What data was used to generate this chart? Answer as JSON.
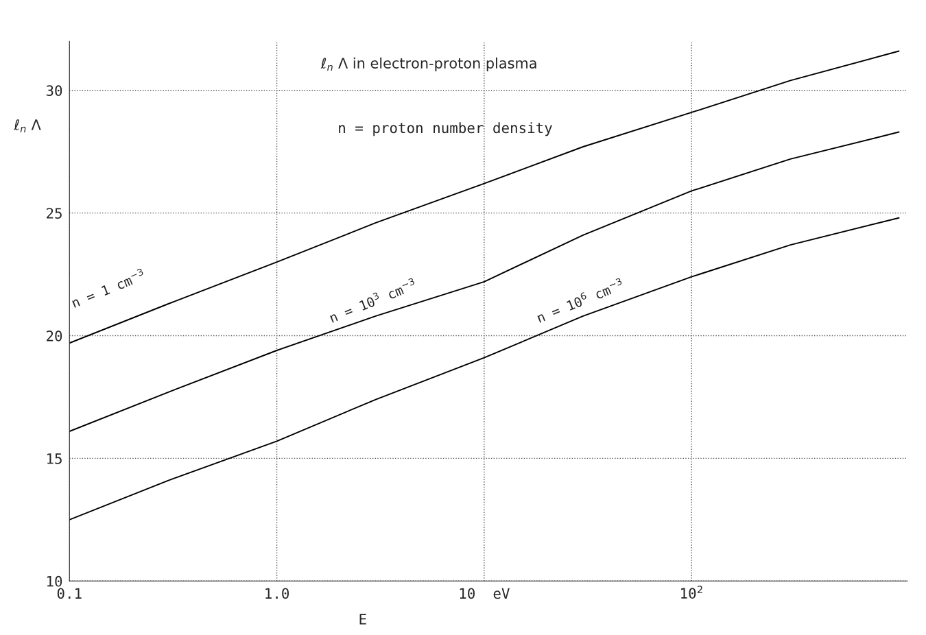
{
  "chart_data": {
    "type": "line",
    "title": "ℓ$_{n}$ Λ in electron-proton plasma",
    "xlabel": "E",
    "ylabel": "ℓ$_{n}$ Λ",
    "log": "x",
    "xlim": [
      0.1,
      1100
    ],
    "ylim": [
      10,
      32
    ],
    "xticks": [
      {
        "value": 0.1,
        "label": "0.1"
      },
      {
        "value": 1,
        "label": "1.0"
      },
      {
        "value": 10,
        "label": "10  eV"
      },
      {
        "value": 100,
        "label": "10$^{2}$"
      }
    ],
    "yticks": [
      10,
      15,
      20,
      25,
      30
    ],
    "grid": true,
    "line_style": "solid",
    "marker": "none",
    "series": [
      {
        "color": "#000000",
        "x": [
          0.1,
          0.3,
          1,
          3,
          10,
          30,
          100,
          300,
          1000
        ],
        "values": [
          19.7,
          21.3,
          23.0,
          24.6,
          26.2,
          27.7,
          29.1,
          30.4,
          31.6
        ]
      },
      {
        "color": "#000000",
        "x": [
          0.1,
          0.3,
          1,
          3,
          10,
          30,
          100,
          300,
          1000
        ],
        "values": [
          16.1,
          17.7,
          19.4,
          20.8,
          22.2,
          24.1,
          25.9,
          27.2,
          28.3
        ]
      },
      {
        "color": "#000000",
        "x": [
          0.1,
          0.3,
          1,
          3,
          10,
          30,
          100,
          300,
          1000
        ],
        "values": [
          12.5,
          14.1,
          15.7,
          17.4,
          19.1,
          20.8,
          22.4,
          23.7,
          24.8
        ]
      }
    ],
    "annotations": [
      "n = proton number density",
      {
        "text": "n = 1 cm$^{−3}$",
        "x": 0.3,
        "y": 21.3
      },
      {
        "text": "n = 10$^{3}$ cm$^{−3}$",
        "x": 3,
        "y": 20.8
      },
      {
        "text": "n = 10$^{6}$ cm$^{−3}$",
        "x": 30,
        "y": 20.8
      }
    ]
  }
}
